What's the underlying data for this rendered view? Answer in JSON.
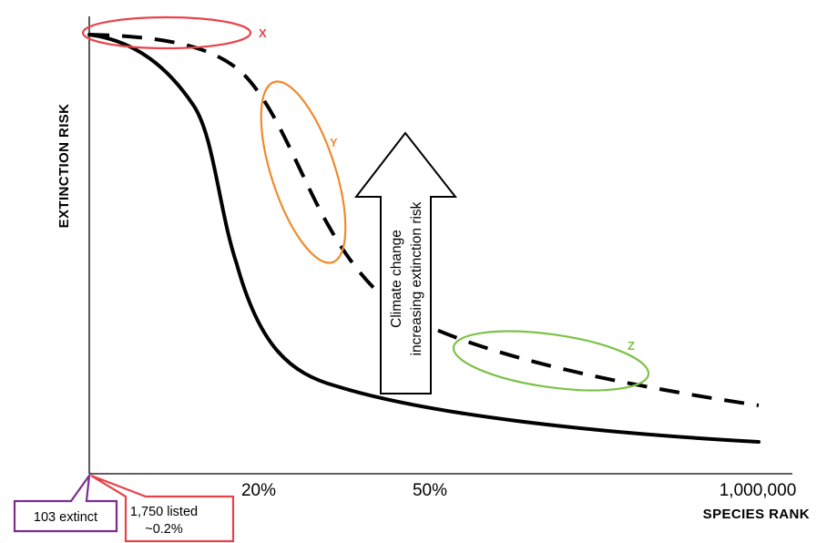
{
  "axes": {
    "y_title": "EXTINCTION RISK",
    "x_title": "SPECIES RANK",
    "x_ticks": [
      "20%",
      "50%",
      "1,000,000"
    ]
  },
  "annotations": {
    "x_label": "X",
    "y_label": "Y",
    "z_label": "Z",
    "arrow_line1": "Climate change",
    "arrow_line2": "increasing extinction risk"
  },
  "callouts": {
    "extinct": "103 extinct",
    "listed_line1": "1,750 listed",
    "listed_line2": "~0.2%"
  },
  "colors": {
    "x_ellipse": "#e8434a",
    "y_ellipse": "#f08a2c",
    "z_ellipse": "#7cc24a",
    "extinct_box": "#7b2d8e",
    "listed_box": "#e8434a",
    "curves": "#000000"
  }
}
